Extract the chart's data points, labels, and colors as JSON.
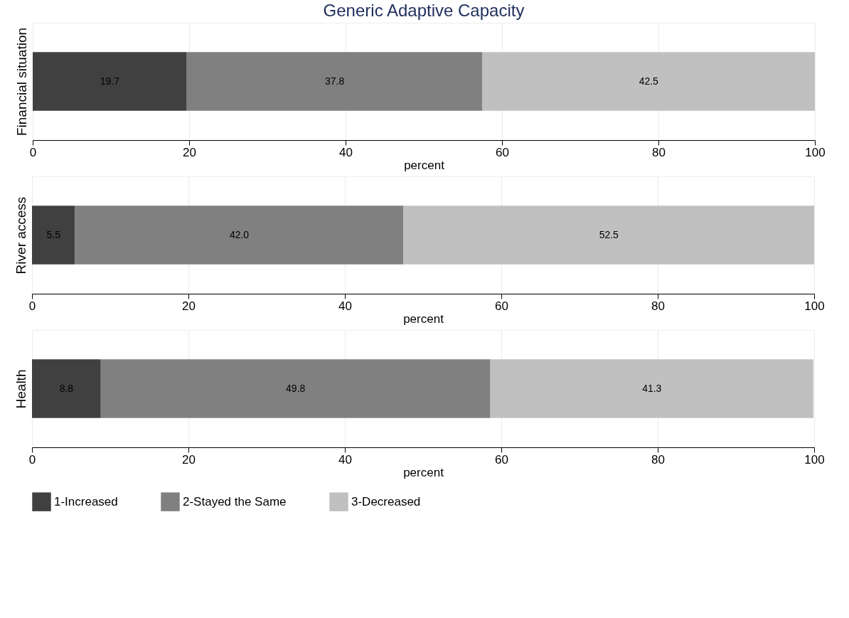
{
  "chart_data": [
    {
      "type": "bar",
      "title": "Generic Adaptive Capacity",
      "orientation": "horizontal",
      "stacked": true,
      "ylabel": "Financial situation",
      "xlabel": "percent",
      "categories": [
        null
      ],
      "xlim": [
        0,
        100
      ],
      "xticks": [
        0,
        20,
        40,
        60,
        80,
        100
      ],
      "grid": "x",
      "legend": false,
      "series": [
        {
          "color": "#404040",
          "values": [
            19.7
          ],
          "value_labels": [
            "19.7"
          ]
        },
        {
          "color": "#808080",
          "values": [
            37.8
          ],
          "value_labels": [
            "37.8"
          ]
        },
        {
          "color": "#c0c0c0",
          "values": [
            42.5
          ],
          "value_labels": [
            "42.5"
          ]
        }
      ]
    },
    {
      "type": "bar",
      "orientation": "horizontal",
      "stacked": true,
      "ylabel": "River access",
      "xlabel": "percent",
      "categories": [
        null
      ],
      "xlim": [
        0,
        100
      ],
      "xticks": [
        0,
        20,
        40,
        60,
        80,
        100
      ],
      "grid": "x",
      "legend": false,
      "series": [
        {
          "color": "#404040",
          "values": [
            5.5
          ],
          "value_labels": [
            "5.5"
          ]
        },
        {
          "color": "#808080",
          "values": [
            42.0
          ],
          "value_labels": [
            "42.0"
          ]
        },
        {
          "color": "#c0c0c0",
          "values": [
            52.5
          ],
          "value_labels": [
            "52.5"
          ]
        }
      ]
    },
    {
      "type": "bar",
      "orientation": "horizontal",
      "stacked": true,
      "ylabel": "Health",
      "xlabel": "percent",
      "categories": [
        null
      ],
      "xlim": [
        0,
        100
      ],
      "xticks": [
        0,
        20,
        40,
        60,
        80,
        100
      ],
      "grid": "x",
      "legend": "bottom",
      "series": [
        {
          "name": "1-Increased",
          "color": "#404040",
          "values": [
            8.8
          ],
          "value_labels": [
            "8.8"
          ]
        },
        {
          "name": "2-Stayed the Same",
          "color": "#808080",
          "values": [
            49.8
          ],
          "value_labels": [
            "49.8"
          ]
        },
        {
          "name": "3-Decreased",
          "color": "#c0c0c0",
          "values": [
            41.3
          ],
          "value_labels": [
            "41.3"
          ]
        }
      ]
    }
  ]
}
